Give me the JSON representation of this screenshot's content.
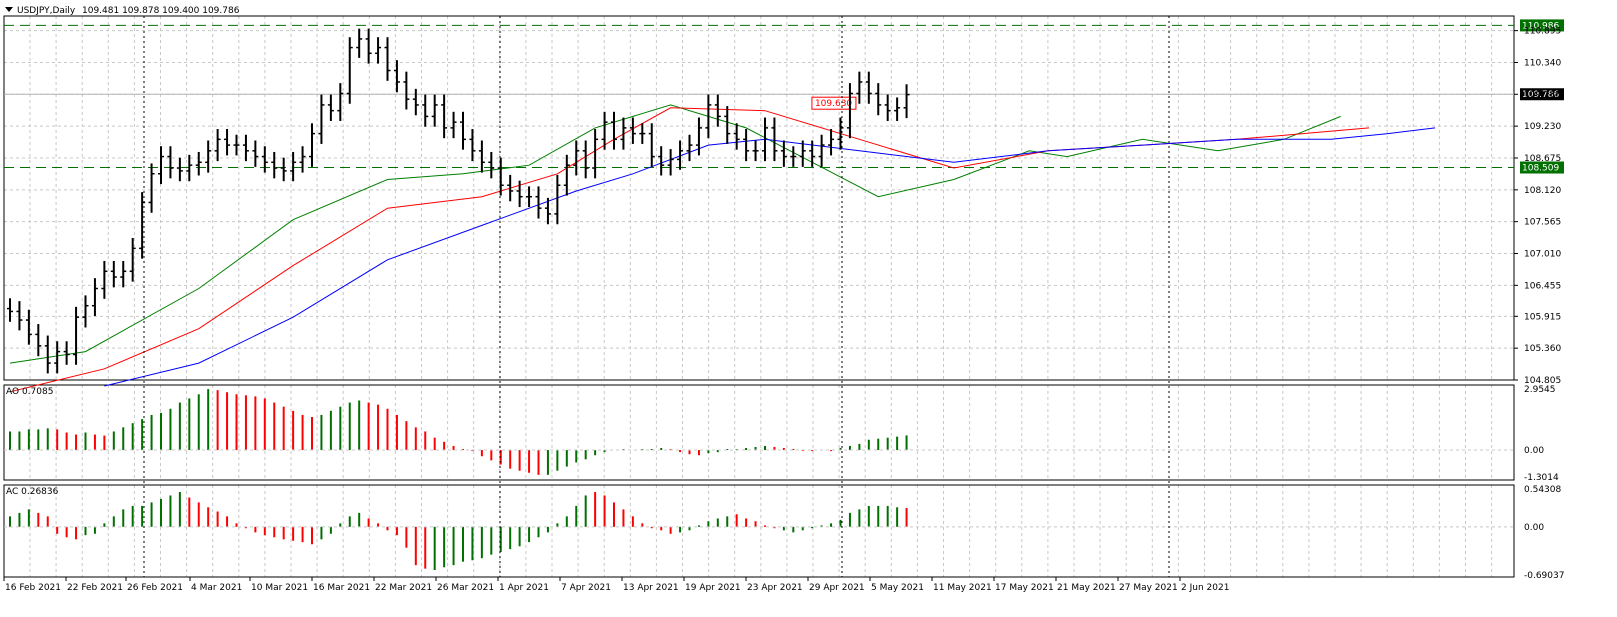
{
  "header": {
    "symbol_label": "USDJPY,Daily",
    "ohlc_label": "109.481 109.878 109.400 109.786"
  },
  "colors": {
    "bull": "#007000",
    "bear": "#ff0000",
    "ma_fast": "#008000",
    "ma_mid": "#ff0000",
    "ma_slow": "#0000ff",
    "level_line": "#007000",
    "grid": "#c8c8c8"
  },
  "chart_data": [
    {
      "type": "bar",
      "subtype": "ohlc",
      "title": "USDJPY,Daily",
      "ylim": [
        104.805,
        111.15
      ],
      "y_ticks": [
        "110.895",
        "110.340",
        "109.785",
        "109.230",
        "108.675",
        "108.120",
        "107.565",
        "107.010",
        "106.455",
        "105.915",
        "105.360",
        "104.805"
      ],
      "x_labels": [
        "16 Feb 2021",
        "22 Feb 2021",
        "26 Feb 2021",
        "4 Mar 2021",
        "10 Mar 2021",
        "16 Mar 2021",
        "22 Mar 2021",
        "26 Mar 2021",
        "1 Apr 2021",
        "7 Apr 2021",
        "13 Apr 2021",
        "19 Apr 2021",
        "23 Apr 2021",
        "29 Apr 2021",
        "5 May 2021",
        "11 May 2021",
        "17 May 2021",
        "21 May 2021",
        "27 May 2021",
        "2 Jun 2021"
      ],
      "close_values": [
        106.0,
        105.85,
        105.6,
        105.4,
        105.1,
        105.3,
        105.25,
        105.9,
        106.1,
        106.4,
        106.7,
        106.6,
        106.7,
        107.1,
        107.9,
        108.4,
        108.7,
        108.5,
        108.45,
        108.55,
        108.6,
        108.8,
        109.0,
        108.9,
        108.9,
        108.8,
        108.7,
        108.6,
        108.5,
        108.45,
        108.6,
        108.7,
        109.1,
        109.6,
        109.5,
        109.8,
        110.6,
        110.75,
        110.5,
        110.6,
        110.2,
        110.0,
        109.7,
        109.6,
        109.4,
        109.6,
        109.2,
        109.3,
        109.0,
        108.8,
        108.6,
        108.5,
        108.2,
        108.1,
        108.0,
        108.0,
        107.8,
        107.7,
        108.2,
        108.55,
        108.8,
        108.5,
        109.0,
        109.3,
        109.0,
        109.2,
        109.1,
        109.1,
        108.7,
        108.55,
        108.65,
        108.8,
        108.9,
        109.2,
        109.6,
        109.4,
        109.1,
        109.0,
        108.8,
        108.8,
        109.2,
        108.8,
        108.7,
        108.7,
        108.8,
        108.7,
        108.9,
        109.0,
        109.2,
        109.8,
        110.0,
        109.8,
        109.6,
        109.5,
        109.55,
        109.78
      ],
      "levels": [
        {
          "value": 110.986,
          "label": "110.986"
        },
        {
          "value": 108.509,
          "label": "108.509"
        }
      ],
      "current_price": {
        "value": 109.786,
        "label": "109.786"
      },
      "annotation": {
        "value": 109.63,
        "label": "109.630"
      },
      "moving_averages": [
        {
          "color_key": "ma_fast",
          "points": [
            [
              0,
              105.1
            ],
            [
              8,
              105.3
            ],
            [
              20,
              106.4
            ],
            [
              30,
              107.6
            ],
            [
              40,
              108.3
            ],
            [
              48,
              108.4
            ],
            [
              55,
              108.55
            ],
            [
              62,
              109.2
            ],
            [
              70,
              109.6
            ],
            [
              78,
              109.2
            ],
            [
              85,
              108.6
            ],
            [
              92,
              108.0
            ],
            [
              100,
              108.3
            ],
            [
              108,
              108.8
            ],
            [
              112,
              108.7
            ],
            [
              120,
              109.0
            ],
            [
              128,
              108.8
            ],
            [
              135,
              109.0
            ],
            [
              141,
              109.4
            ]
          ]
        },
        {
          "color_key": "ma_mid",
          "points": [
            [
              0,
              104.6
            ],
            [
              10,
              105.0
            ],
            [
              20,
              105.7
            ],
            [
              30,
              106.8
            ],
            [
              40,
              107.8
            ],
            [
              50,
              108.0
            ],
            [
              58,
              108.4
            ],
            [
              64,
              109.0
            ],
            [
              70,
              109.55
            ],
            [
              80,
              109.5
            ],
            [
              90,
              109.0
            ],
            [
              100,
              108.5
            ],
            [
              110,
              108.8
            ],
            [
              120,
              108.9
            ],
            [
              130,
              109.0
            ],
            [
              137,
              109.1
            ],
            [
              144,
              109.2
            ]
          ]
        },
        {
          "color_key": "ma_slow",
          "points": [
            [
              10,
              104.7
            ],
            [
              20,
              105.1
            ],
            [
              30,
              105.9
            ],
            [
              40,
              106.9
            ],
            [
              50,
              107.5
            ],
            [
              60,
              108.1
            ],
            [
              66,
              108.4
            ],
            [
              74,
              108.9
            ],
            [
              80,
              109.0
            ],
            [
              90,
              108.8
            ],
            [
              100,
              108.6
            ],
            [
              110,
              108.8
            ],
            [
              120,
              108.9
            ],
            [
              130,
              109.0
            ],
            [
              140,
              109.0
            ],
            [
              146,
              109.1
            ],
            [
              151,
              109.2
            ]
          ]
        }
      ]
    },
    {
      "type": "bar",
      "title": "AO 0.7085",
      "ylim": [
        -1.45,
        3.15
      ],
      "y_ticks": [
        "2.9545",
        "0.00",
        "-1.3014"
      ],
      "values": [
        0.9,
        0.9,
        1.0,
        1.0,
        1.05,
        1.0,
        0.85,
        0.75,
        0.85,
        0.75,
        0.7,
        0.9,
        1.1,
        1.3,
        1.5,
        1.7,
        1.8,
        2.0,
        2.3,
        2.5,
        2.7,
        2.95,
        2.9,
        2.8,
        2.7,
        2.65,
        2.6,
        2.5,
        2.3,
        2.1,
        1.9,
        1.7,
        1.6,
        1.7,
        1.9,
        2.1,
        2.3,
        2.4,
        2.3,
        2.2,
        2.0,
        1.7,
        1.4,
        1.1,
        0.9,
        0.6,
        0.4,
        0.2,
        0.05,
        -0.05,
        -0.3,
        -0.5,
        -0.7,
        -0.9,
        -1.0,
        -1.1,
        -1.2,
        -1.2,
        -1.0,
        -0.8,
        -0.6,
        -0.45,
        -0.25,
        -0.1,
        0.0,
        0.05,
        0.0,
        0.05,
        0.05,
        0.1,
        0.05,
        -0.1,
        -0.2,
        -0.25,
        -0.15,
        -0.1,
        0.05,
        0.05,
        0.1,
        0.15,
        0.2,
        0.15,
        0.1,
        0.05,
        -0.05,
        -0.05,
        0.0,
        -0.05,
        0.1,
        0.2,
        0.3,
        0.5,
        0.55,
        0.6,
        0.65,
        0.71
      ],
      "colors": [
        "g",
        "g",
        "g",
        "g",
        "g",
        "r",
        "r",
        "r",
        "g",
        "r",
        "r",
        "g",
        "g",
        "g",
        "g",
        "g",
        "g",
        "g",
        "g",
        "g",
        "g",
        "g",
        "r",
        "r",
        "r",
        "r",
        "r",
        "r",
        "r",
        "r",
        "r",
        "r",
        "r",
        "g",
        "g",
        "g",
        "g",
        "g",
        "r",
        "r",
        "r",
        "r",
        "r",
        "r",
        "r",
        "r",
        "r",
        "r",
        "r",
        "r",
        "r",
        "r",
        "r",
        "r",
        "r",
        "r",
        "r",
        "g",
        "g",
        "g",
        "g",
        "g",
        "g",
        "g",
        "g",
        "g",
        "r",
        "g",
        "g",
        "g",
        "r",
        "r",
        "r",
        "r",
        "g",
        "g",
        "g",
        "g",
        "g",
        "g",
        "g",
        "r",
        "r",
        "r",
        "r",
        "r",
        "g",
        "r",
        "g",
        "g",
        "g",
        "g",
        "g",
        "g",
        "g",
        "g"
      ]
    },
    {
      "type": "bar",
      "title": "AC 0.26836",
      "ylim": [
        -0.72,
        0.6
      ],
      "y_ticks": [
        "0.54308",
        "0.00",
        "-0.69037"
      ],
      "values": [
        0.15,
        0.2,
        0.25,
        0.2,
        0.15,
        -0.1,
        -0.15,
        -0.18,
        -0.12,
        -0.1,
        0.05,
        0.15,
        0.25,
        0.3,
        0.3,
        0.35,
        0.4,
        0.45,
        0.5,
        0.42,
        0.35,
        0.28,
        0.22,
        0.15,
        0.05,
        -0.02,
        -0.08,
        -0.12,
        -0.15,
        -0.18,
        -0.2,
        -0.22,
        -0.25,
        -0.18,
        -0.1,
        0.05,
        0.15,
        0.2,
        0.12,
        0.05,
        -0.05,
        -0.12,
        -0.3,
        -0.55,
        -0.6,
        -0.62,
        -0.58,
        -0.55,
        -0.5,
        -0.48,
        -0.45,
        -0.4,
        -0.36,
        -0.32,
        -0.28,
        -0.22,
        -0.15,
        -0.08,
        0.05,
        0.15,
        0.3,
        0.45,
        0.5,
        0.45,
        0.35,
        0.25,
        0.15,
        0.05,
        -0.02,
        -0.05,
        -0.1,
        -0.08,
        -0.05,
        0.02,
        0.08,
        0.12,
        0.15,
        0.18,
        0.12,
        0.08,
        0.02,
        -0.02,
        -0.05,
        -0.08,
        -0.05,
        -0.02,
        0.02,
        0.05,
        0.1,
        0.2,
        0.25,
        0.3,
        0.3,
        0.3,
        0.28,
        0.27
      ],
      "colors": [
        "g",
        "g",
        "g",
        "r",
        "r",
        "r",
        "r",
        "r",
        "g",
        "g",
        "g",
        "g",
        "g",
        "g",
        "g",
        "g",
        "g",
        "g",
        "g",
        "r",
        "r",
        "r",
        "r",
        "r",
        "r",
        "r",
        "r",
        "r",
        "r",
        "r",
        "r",
        "r",
        "r",
        "g",
        "g",
        "g",
        "g",
        "g",
        "r",
        "r",
        "r",
        "r",
        "r",
        "r",
        "r",
        "g",
        "g",
        "g",
        "g",
        "g",
        "g",
        "g",
        "g",
        "g",
        "g",
        "g",
        "g",
        "g",
        "g",
        "g",
        "g",
        "g",
        "r",
        "r",
        "r",
        "r",
        "r",
        "r",
        "r",
        "r",
        "r",
        "g",
        "g",
        "g",
        "g",
        "g",
        "g",
        "r",
        "r",
        "r",
        "r",
        "r",
        "g",
        "g",
        "g",
        "g",
        "g",
        "g",
        "g",
        "g",
        "g",
        "g",
        "g",
        "g",
        "g",
        "r"
      ]
    }
  ]
}
